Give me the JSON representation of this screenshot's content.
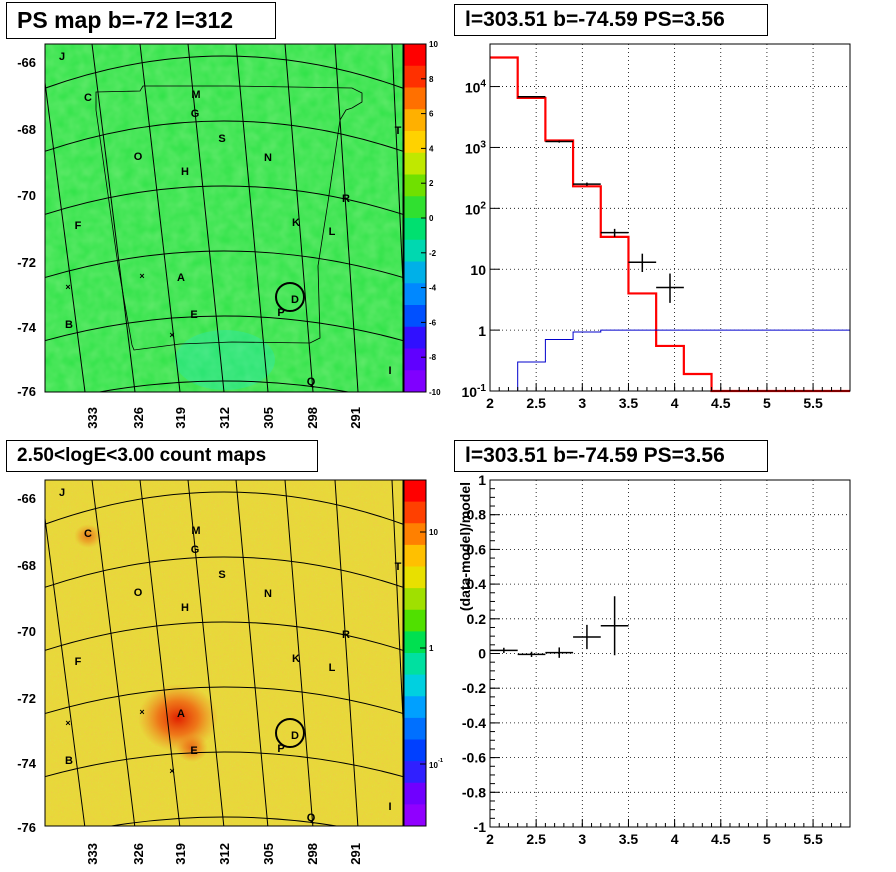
{
  "panels": {
    "tl_title": "PS map b=-72 l=312",
    "tr_title": "l=303.51 b=-74.59 PS=3.56",
    "bl_title": "2.50<logE<3.00 count maps",
    "br_title": "l=303.51 b=-74.59 PS=3.56"
  },
  "sky_map": {
    "y_ticks": [
      "-66",
      "-68",
      "-70",
      "-72",
      "-74",
      "-76"
    ],
    "x_ticks": [
      "333",
      "326",
      "319",
      "312",
      "305",
      "298",
      "291"
    ],
    "sources": [
      "J",
      "C",
      "M",
      "G",
      "S",
      "T",
      "O",
      "H",
      "N",
      "R",
      "F",
      "K",
      "L",
      "A",
      "D",
      "B",
      "E",
      "P",
      "Q",
      "I"
    ],
    "ps_colorbar_ticks": [
      "10",
      "8",
      "6",
      "4",
      "2",
      "0",
      "-2",
      "-4",
      "-6",
      "-8",
      "-10"
    ],
    "count_colorbar_ticks": [
      "10",
      "1",
      "10-1"
    ]
  },
  "chart_data": [
    {
      "type": "line",
      "title": "l=303.51 b=-74.59 PS=3.56",
      "xlabel": "",
      "ylabel": "",
      "yscale": "log",
      "xlim": [
        2,
        5.9
      ],
      "ylim": [
        0.1,
        50000
      ],
      "x_ticks": [
        "2",
        "2.5",
        "3",
        "3.5",
        "4",
        "4.5",
        "5",
        "5.5"
      ],
      "y_ticks": [
        "10^-1",
        "1",
        "10",
        "10^2",
        "10^3",
        "10^4"
      ],
      "grid": true,
      "series": [
        {
          "kind": "step",
          "color": "#ff0000",
          "x_edges": [
            2,
            2.3,
            2.6,
            2.9,
            3.2,
            3.5,
            3.8,
            4.1,
            4.4,
            5.9
          ],
          "values": [
            30000,
            6500,
            1300,
            230,
            34,
            4,
            0.55,
            0.19,
            0.1
          ]
        },
        {
          "kind": "step",
          "color": "#0000cc",
          "x_edges": [
            2,
            2.3,
            2.6,
            2.9,
            3.2,
            3.5,
            5.9
          ],
          "values": [
            0.05,
            0.3,
            0.7,
            0.93,
            1.0,
            1.0
          ]
        },
        {
          "kind": "errorbar",
          "color": "#000000",
          "x": [
            2.45,
            2.75,
            3.05,
            3.35,
            3.65,
            3.95
          ],
          "y": [
            6800,
            1250,
            250,
            40,
            13,
            5
          ],
          "xerr": [
            0.15,
            0.15,
            0.15,
            0.15,
            0.15,
            0.15
          ],
          "ylow": [
            6700,
            1200,
            235,
            34,
            9,
            2.8
          ],
          "yhigh": [
            6900,
            1300,
            265,
            46,
            18,
            8.5
          ]
        }
      ]
    },
    {
      "type": "scatter",
      "title": "l=303.51 b=-74.59 PS=3.56",
      "xlabel": "",
      "ylabel": "(data-model)/model",
      "xlim": [
        2,
        5.9
      ],
      "ylim": [
        -1,
        1
      ],
      "x_ticks": [
        "2",
        "2.5",
        "3",
        "3.5",
        "4",
        "4.5",
        "5",
        "5.5"
      ],
      "y_ticks": [
        "-1",
        "-0.8",
        "-0.6",
        "-0.4",
        "-0.2",
        "0",
        "0.2",
        "0.4",
        "0.6",
        "0.8",
        "1"
      ],
      "grid": true,
      "series": [
        {
          "kind": "errorbar",
          "color": "#000000",
          "x": [
            2.15,
            2.45,
            2.75,
            3.05,
            3.35
          ],
          "y": [
            0.018,
            -0.005,
            0.005,
            0.095,
            0.16
          ],
          "xerr": [
            0.15,
            0.15,
            0.15,
            0.15,
            0.15
          ],
          "yerr": [
            0.015,
            0.015,
            0.03,
            0.07,
            0.17
          ]
        }
      ]
    }
  ]
}
